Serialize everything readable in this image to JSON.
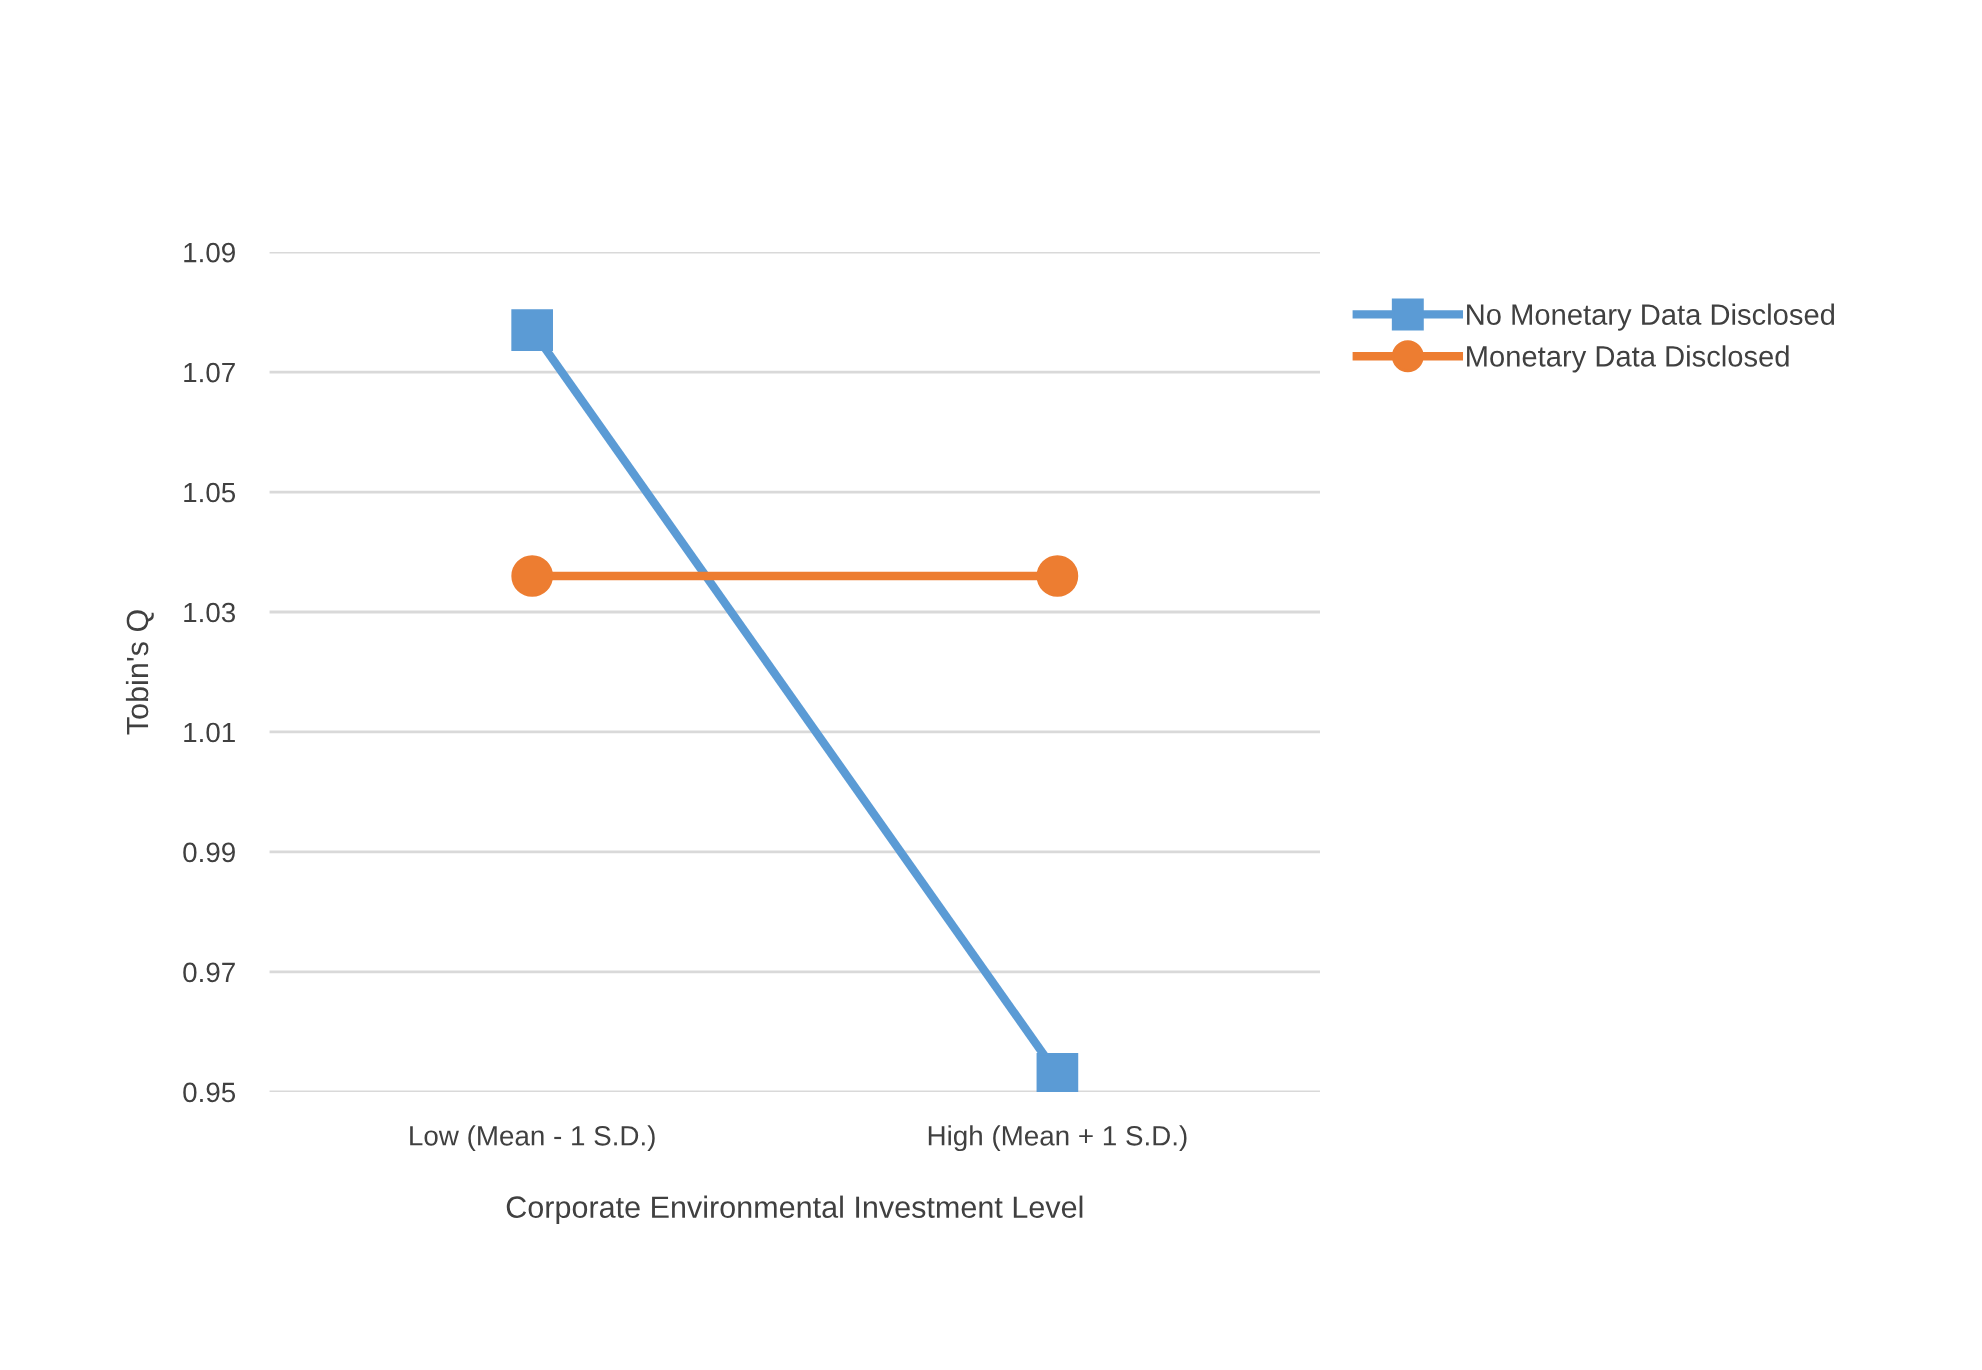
{
  "chart_data": {
    "type": "line",
    "xlabel": "Corporate Environmental Investment Level",
    "ylabel": "Tobin's Q",
    "categories": [
      "Low (Mean - 1 S.D.)",
      "High (Mean + 1 S.D.)"
    ],
    "series": [
      {
        "name": "No Monetary Data Disclosed",
        "color": "#5b9bd5",
        "values": [
          1.077,
          0.953
        ],
        "marker": "square"
      },
      {
        "name": "Monetary Data Disclosed",
        "color": "#ed7d31",
        "values": [
          1.036,
          1.036
        ],
        "marker": "circle"
      }
    ],
    "ylim": [
      0.95,
      1.09
    ],
    "yticks": [
      0.95,
      0.97,
      0.99,
      1.01,
      1.03,
      1.05,
      1.07,
      1.09
    ],
    "grid": "y",
    "legend": "top right",
    "line_style": "solid"
  }
}
